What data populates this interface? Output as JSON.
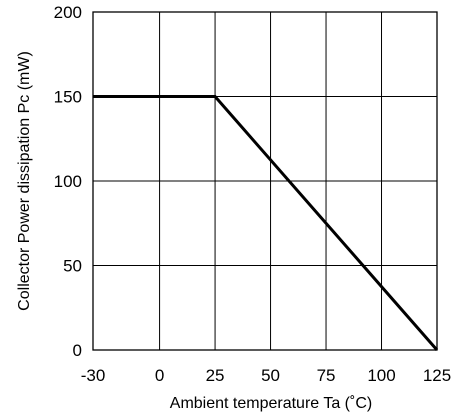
{
  "chart_data": {
    "type": "line",
    "title": "",
    "xlabel": "Ambient temperature Ta (˚C)",
    "ylabel": "Collector Power dissipation Pc (mW)",
    "xlim": [
      -30,
      125
    ],
    "ylim": [
      0,
      200
    ],
    "x_ticks": [
      "-30",
      "0",
      "25",
      "50",
      "75",
      "100",
      "125"
    ],
    "y_ticks": [
      "0",
      "50",
      "100",
      "150",
      "200"
    ],
    "grid": true,
    "legend": "none",
    "series": [
      {
        "x": [
          -30,
          25,
          125
        ],
        "y": [
          150,
          150,
          0
        ]
      }
    ]
  },
  "colors": {
    "line": "#000000",
    "grid": "#000000",
    "frame": "#000000",
    "background": "#ffffff"
  }
}
